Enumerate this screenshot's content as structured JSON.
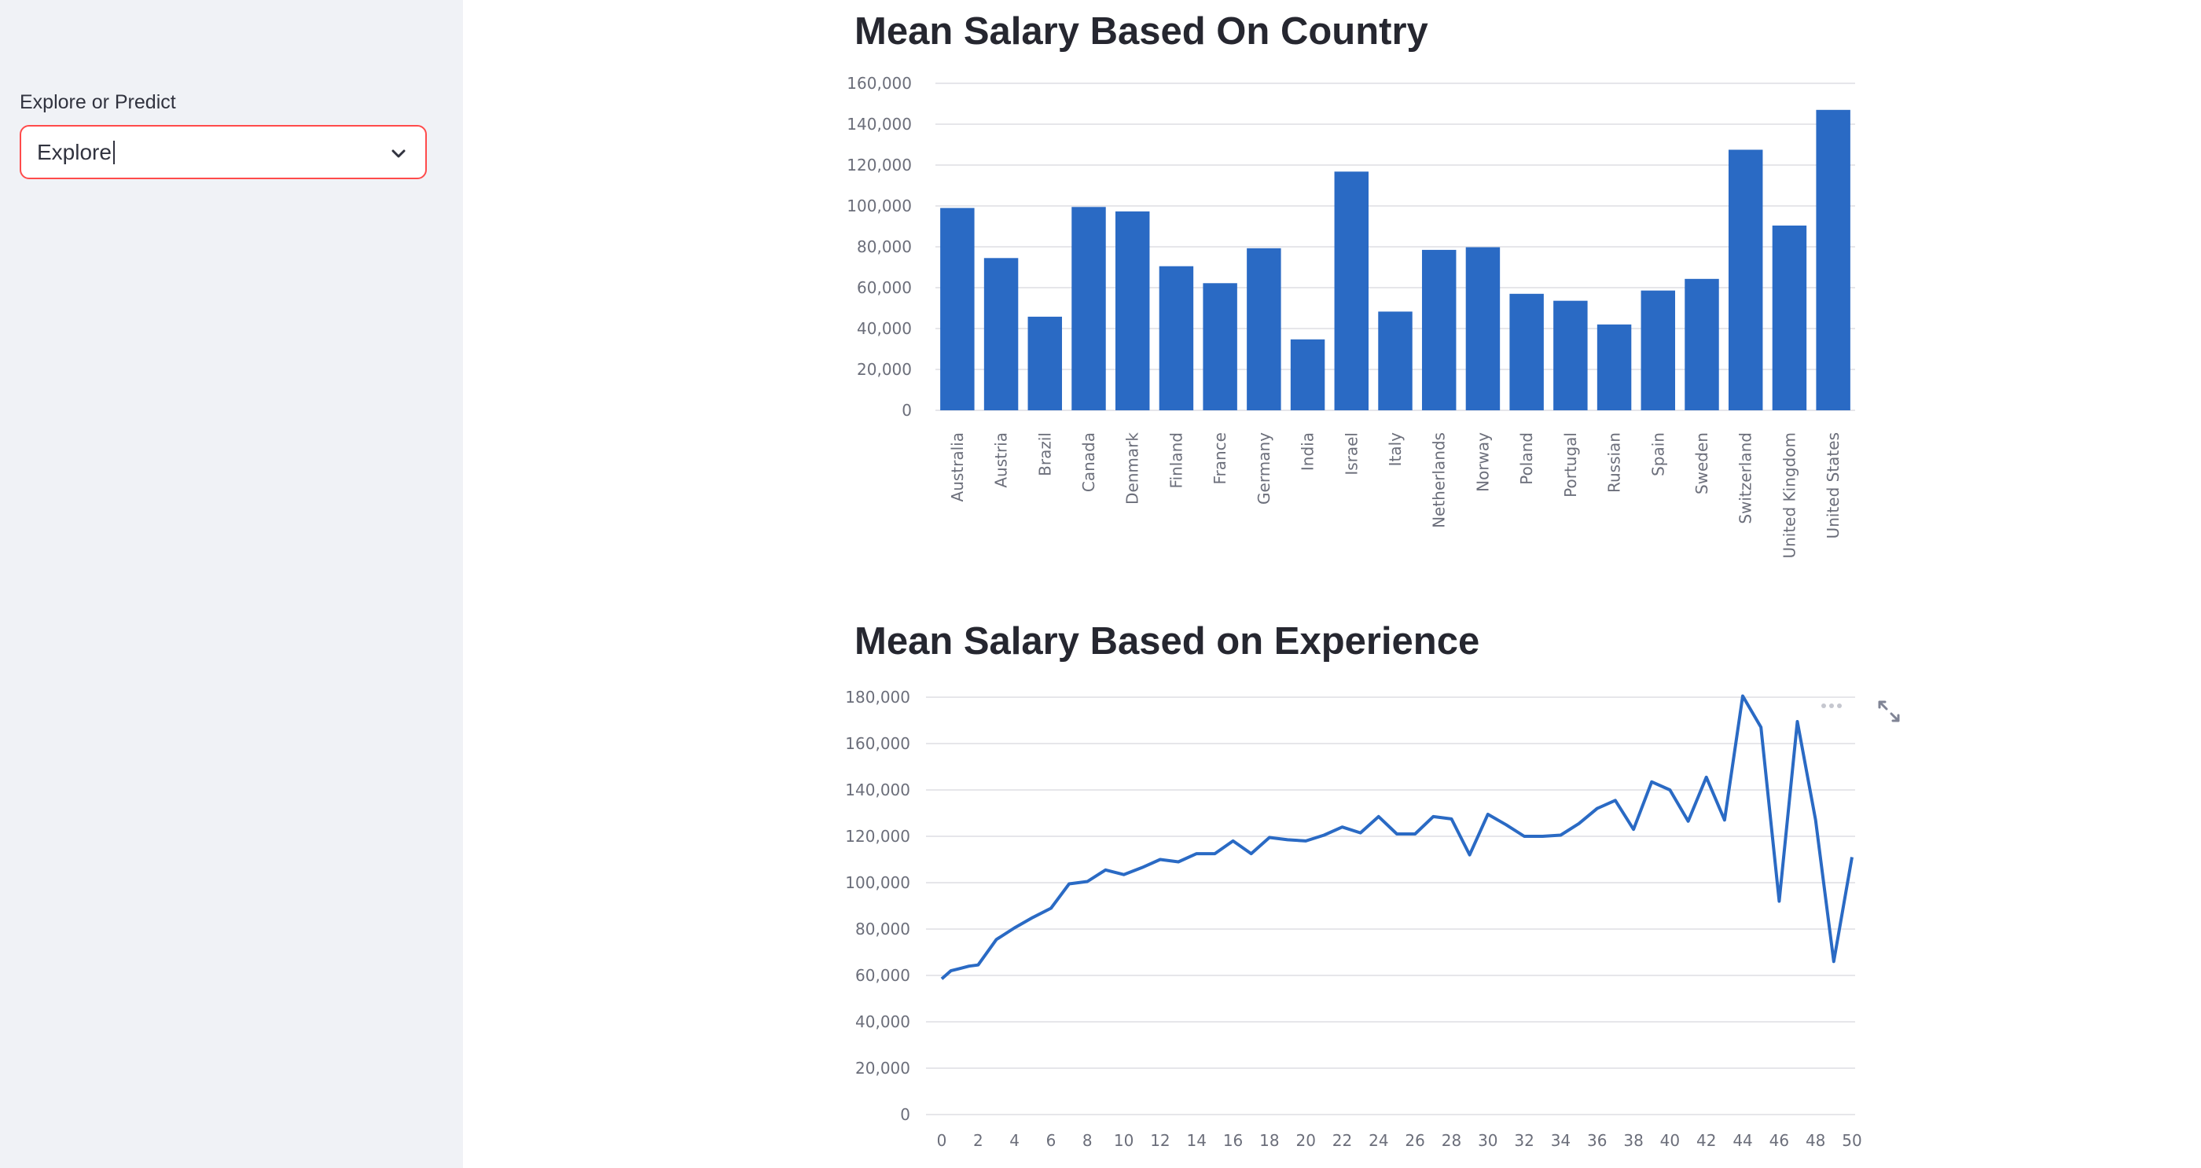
{
  "sidebar": {
    "select_label": "Explore or Predict",
    "select_value": "Explore",
    "chevron_icon": "chevron-down-icon"
  },
  "colors": {
    "accent": "#ff4b4b",
    "series": "#2a6ac4",
    "sidebar_bg": "#f0f2f6"
  },
  "toolbar": {
    "more_icon": "more-horizontal-icon",
    "fullscreen_icon": "expand-icon"
  },
  "chart_data": [
    {
      "type": "bar",
      "title": "Mean Salary Based On Country",
      "xlabel": "",
      "ylabel": "",
      "categories": [
        "Australia",
        "Austria",
        "Brazil",
        "Canada",
        "Denmark",
        "Finland",
        "France",
        "Germany",
        "India",
        "Israel",
        "Italy",
        "Netherlands",
        "Norway",
        "Poland",
        "Portugal",
        "Russian",
        "Spain",
        "Sweden",
        "Switzerland",
        "United Kingdom",
        "United States"
      ],
      "values": [
        99000,
        74500,
        45800,
        99500,
        97300,
        70500,
        62200,
        79300,
        34700,
        116800,
        48300,
        78500,
        79800,
        57000,
        53600,
        42000,
        58600,
        64300,
        127500,
        90400,
        147000
      ],
      "ylim": [
        0,
        160000
      ],
      "yticks": [
        0,
        20000,
        40000,
        60000,
        80000,
        100000,
        120000,
        140000,
        160000
      ],
      "ytick_labels": [
        "0",
        "20,000",
        "40,000",
        "60,000",
        "80,000",
        "100,000",
        "120,000",
        "140,000",
        "160,000"
      ],
      "grid": true
    },
    {
      "type": "line",
      "title": "Mean Salary Based on Experience",
      "xlabel": "",
      "ylabel": "",
      "x": [
        0,
        0.5,
        1,
        1.5,
        2,
        3,
        4,
        5,
        6,
        7,
        8,
        9,
        10,
        11,
        12,
        13,
        14,
        15,
        16,
        17,
        18,
        19,
        20,
        21,
        22,
        23,
        24,
        25,
        26,
        27,
        28,
        29,
        30,
        31,
        32,
        33,
        34,
        35,
        36,
        37,
        38,
        39,
        40,
        41,
        42,
        43,
        44,
        45,
        46,
        47,
        48,
        49,
        50
      ],
      "y": [
        58500,
        62000,
        63000,
        64000,
        64500,
        75500,
        80500,
        85000,
        89000,
        99500,
        100500,
        105500,
        103500,
        106500,
        110000,
        109000,
        112500,
        112500,
        118000,
        112500,
        119500,
        118500,
        118000,
        120500,
        124000,
        121500,
        128500,
        121000,
        121000,
        128500,
        127500,
        112000,
        129500,
        125000,
        120000,
        120000,
        120500,
        125500,
        132000,
        135500,
        123000,
        143500,
        140000,
        126500,
        145500,
        127000,
        180500,
        167000,
        92000,
        169500,
        127000,
        66000,
        111000
      ],
      "ylim": [
        0,
        180000
      ],
      "xlim": [
        0,
        50
      ],
      "yticks": [
        0,
        20000,
        40000,
        60000,
        80000,
        100000,
        120000,
        140000,
        160000,
        180000
      ],
      "ytick_labels": [
        "0",
        "20,000",
        "40,000",
        "60,000",
        "80,000",
        "100,000",
        "120,000",
        "140,000",
        "160,000",
        "180,000"
      ],
      "xticks": [
        0,
        2,
        4,
        6,
        8,
        10,
        12,
        14,
        16,
        18,
        20,
        22,
        24,
        26,
        28,
        30,
        32,
        34,
        36,
        38,
        40,
        42,
        44,
        46,
        48,
        50
      ],
      "grid": true
    }
  ]
}
